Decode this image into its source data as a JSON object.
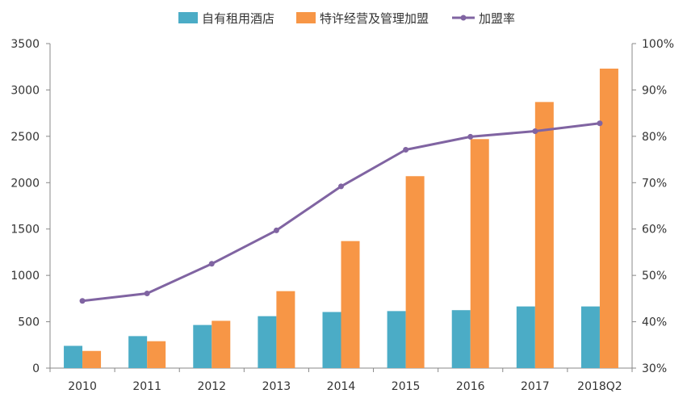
{
  "chart_data": {
    "type": "bar",
    "categories": [
      "2010",
      "2011",
      "2012",
      "2013",
      "2014",
      "2015",
      "2016",
      "2017",
      "2018Q2"
    ],
    "series": [
      {
        "name": "自有租用酒店",
        "type": "bar",
        "axis": "left",
        "color": "#4BACC6",
        "values": [
          240,
          345,
          465,
          560,
          605,
          615,
          625,
          665,
          665
        ]
      },
      {
        "name": "特许经营及管理加盟",
        "type": "bar",
        "axis": "left",
        "color": "#F79646",
        "values": [
          185,
          290,
          510,
          830,
          1370,
          2070,
          2470,
          2870,
          3230
        ]
      },
      {
        "name": "加盟率",
        "type": "line",
        "axis": "right",
        "color": "#8064A2",
        "values": [
          0.445,
          0.461,
          0.525,
          0.597,
          0.692,
          0.771,
          0.799,
          0.811,
          0.828
        ]
      }
    ],
    "y_left": {
      "min": 0,
      "max": 3500,
      "ticks": [
        "0",
        "500",
        "1000",
        "1500",
        "2000",
        "2500",
        "3000",
        "3500"
      ]
    },
    "y_right": {
      "min": 0.3,
      "max": 1.0,
      "ticks": [
        "30%",
        "40%",
        "50%",
        "60%",
        "70%",
        "80%",
        "90%",
        "100%"
      ]
    },
    "legend_position": "top-center",
    "grid": false
  }
}
